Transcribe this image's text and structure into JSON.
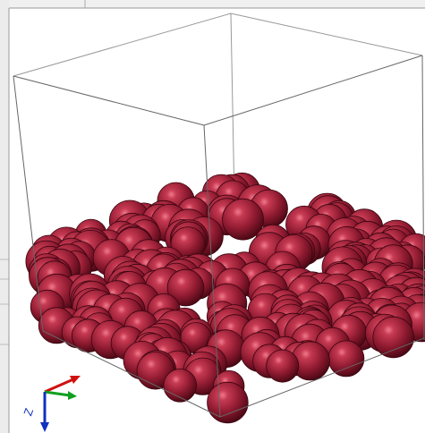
{
  "viewport": {
    "axis_label": "Z"
  }
}
